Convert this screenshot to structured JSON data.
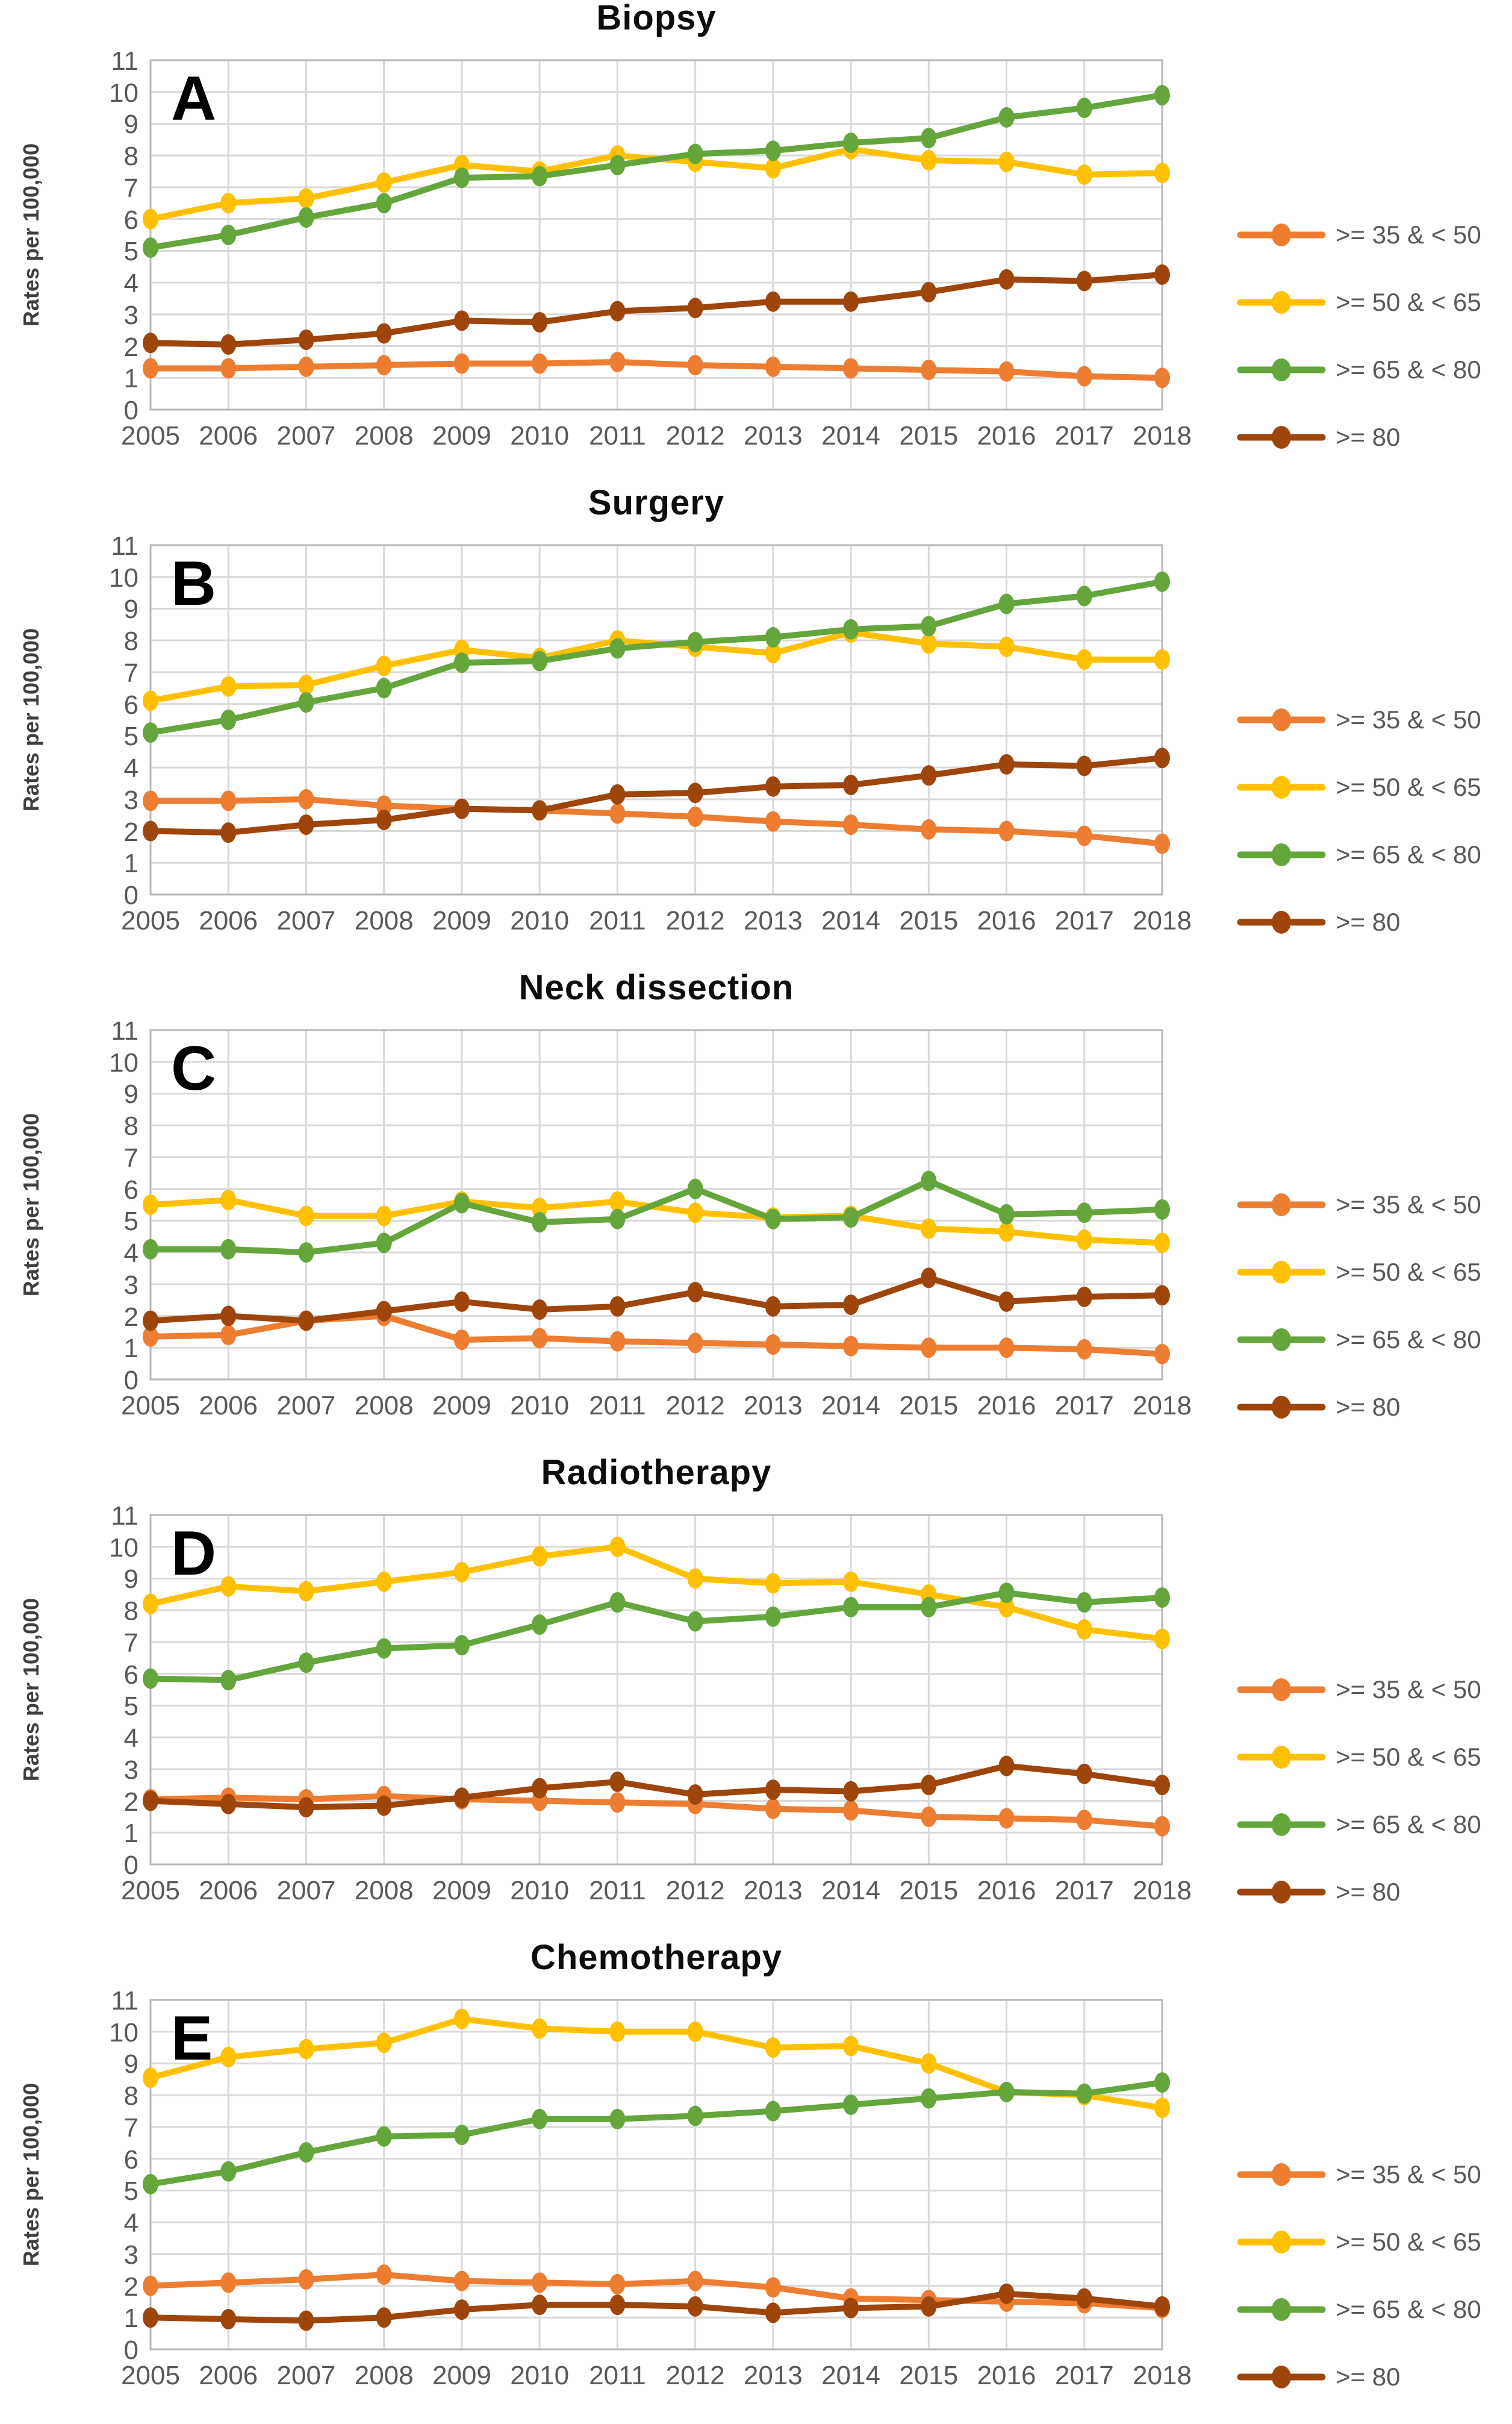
{
  "figure": {
    "y_axis_label": "Rates per 100,000",
    "years": [
      "2005",
      "2006",
      "2007",
      "2008",
      "2009",
      "2010",
      "2011",
      "2012",
      "2013",
      "2014",
      "2015",
      "2016",
      "2017",
      "2018"
    ],
    "colors": {
      "age_35_50": "#ED7D31",
      "age_50_65": "#FFC000",
      "age_65_80": "#64A63C",
      "age_80_plus": "#9E450C",
      "gridline": "#d9d9d9",
      "plot_border": "#b7b7b7",
      "tick_text": "#595959",
      "title_text": "#0d0d0d"
    }
  },
  "chart_data": [
    {
      "type": "line",
      "panel_letter": "A",
      "title": "Biopsy",
      "xlabel": "",
      "ylabel": "Rates per 100,000",
      "ylim": [
        0,
        11
      ],
      "grid": true,
      "legend_position": "right",
      "x": [
        "2005",
        "2006",
        "2007",
        "2008",
        "2009",
        "2010",
        "2011",
        "2012",
        "2013",
        "2014",
        "2015",
        "2016",
        "2017",
        "2018"
      ],
      "series": [
        {
          "name": ">= 35 & < 50",
          "color": "#ED7D31",
          "values": [
            1.3,
            1.3,
            1.35,
            1.4,
            1.45,
            1.45,
            1.5,
            1.4,
            1.35,
            1.3,
            1.25,
            1.2,
            1.05,
            1.0
          ]
        },
        {
          "name": ">= 50 & < 65",
          "color": "#FFC000",
          "values": [
            6.0,
            6.5,
            6.65,
            7.15,
            7.7,
            7.5,
            8.0,
            7.8,
            7.6,
            8.2,
            7.85,
            7.8,
            7.4,
            7.45
          ]
        },
        {
          "name": ">= 65 & < 80",
          "color": "#64A63C",
          "values": [
            5.1,
            5.5,
            6.05,
            6.5,
            7.3,
            7.35,
            7.7,
            8.05,
            8.15,
            8.4,
            8.55,
            9.2,
            9.5,
            9.9
          ]
        },
        {
          "name": ">= 80",
          "color": "#9E450C",
          "values": [
            2.1,
            2.05,
            2.2,
            2.4,
            2.8,
            2.75,
            3.1,
            3.2,
            3.4,
            3.4,
            3.7,
            4.1,
            4.05,
            4.25
          ]
        }
      ]
    },
    {
      "type": "line",
      "panel_letter": "B",
      "title": "Surgery",
      "xlabel": "",
      "ylabel": "Rates per 100,000",
      "ylim": [
        0,
        11
      ],
      "grid": true,
      "legend_position": "right",
      "x": [
        "2005",
        "2006",
        "2007",
        "2008",
        "2009",
        "2010",
        "2011",
        "2012",
        "2013",
        "2014",
        "2015",
        "2016",
        "2017",
        "2018"
      ],
      "series": [
        {
          "name": ">= 35 & < 50",
          "color": "#ED7D31",
          "values": [
            2.95,
            2.95,
            3.0,
            2.8,
            2.7,
            2.65,
            2.55,
            2.45,
            2.3,
            2.2,
            2.05,
            2.0,
            1.85,
            1.6
          ]
        },
        {
          "name": ">= 50 & < 65",
          "color": "#FFC000",
          "values": [
            6.1,
            6.55,
            6.6,
            7.2,
            7.7,
            7.45,
            8.0,
            7.8,
            7.6,
            8.25,
            7.9,
            7.8,
            7.4,
            7.4
          ]
        },
        {
          "name": ">= 65 & < 80",
          "color": "#64A63C",
          "values": [
            5.1,
            5.5,
            6.05,
            6.5,
            7.3,
            7.35,
            7.75,
            7.95,
            8.1,
            8.35,
            8.45,
            9.15,
            9.4,
            9.85
          ]
        },
        {
          "name": ">= 80",
          "color": "#9E450C",
          "values": [
            2.0,
            1.95,
            2.2,
            2.35,
            2.7,
            2.65,
            3.15,
            3.2,
            3.4,
            3.45,
            3.75,
            4.1,
            4.05,
            4.3
          ]
        }
      ]
    },
    {
      "type": "line",
      "panel_letter": "C",
      "title": "Neck dissection",
      "xlabel": "",
      "ylabel": "Rates per 100,000",
      "ylim": [
        0,
        11
      ],
      "grid": true,
      "legend_position": "right",
      "x": [
        "2005",
        "2006",
        "2007",
        "2008",
        "2009",
        "2010",
        "2011",
        "2012",
        "2013",
        "2014",
        "2015",
        "2016",
        "2017",
        "2018"
      ],
      "series": [
        {
          "name": ">= 35 & < 50",
          "color": "#ED7D31",
          "values": [
            1.35,
            1.4,
            1.85,
            2.0,
            1.25,
            1.3,
            1.2,
            1.15,
            1.1,
            1.05,
            1.0,
            1.0,
            0.95,
            0.8
          ]
        },
        {
          "name": ">= 50 & < 65",
          "color": "#FFC000",
          "values": [
            5.5,
            5.65,
            5.15,
            5.15,
            5.6,
            5.4,
            5.6,
            5.25,
            5.1,
            5.15,
            4.75,
            4.65,
            4.4,
            4.3
          ]
        },
        {
          "name": ">= 65 & < 80",
          "color": "#64A63C",
          "values": [
            4.1,
            4.1,
            4.0,
            4.3,
            5.55,
            4.95,
            5.05,
            6.0,
            5.05,
            5.1,
            6.25,
            5.2,
            5.25,
            5.35
          ]
        },
        {
          "name": ">= 80",
          "color": "#9E450C",
          "values": [
            1.85,
            2.0,
            1.85,
            2.15,
            2.45,
            2.2,
            2.3,
            2.75,
            2.3,
            2.35,
            3.2,
            2.45,
            2.6,
            2.65
          ]
        }
      ]
    },
    {
      "type": "line",
      "panel_letter": "D",
      "title": "Radiotherapy",
      "xlabel": "",
      "ylabel": "Rates per 100,000",
      "ylim": [
        0,
        11
      ],
      "grid": true,
      "legend_position": "right",
      "x": [
        "2005",
        "2006",
        "2007",
        "2008",
        "2009",
        "2010",
        "2011",
        "2012",
        "2013",
        "2014",
        "2015",
        "2016",
        "2017",
        "2018"
      ],
      "series": [
        {
          "name": ">= 35 & < 50",
          "color": "#ED7D31",
          "values": [
            2.05,
            2.1,
            2.05,
            2.15,
            2.05,
            2.0,
            1.95,
            1.9,
            1.75,
            1.7,
            1.5,
            1.45,
            1.4,
            1.2
          ]
        },
        {
          "name": ">= 50 & < 65",
          "color": "#FFC000",
          "values": [
            8.2,
            8.75,
            8.6,
            8.9,
            9.2,
            9.7,
            10.0,
            9.0,
            8.85,
            8.9,
            8.5,
            8.1,
            7.4,
            7.1
          ]
        },
        {
          "name": ">= 65 & < 80",
          "color": "#64A63C",
          "values": [
            5.85,
            5.8,
            6.35,
            6.8,
            6.9,
            7.55,
            8.25,
            7.65,
            7.8,
            8.1,
            8.1,
            8.55,
            8.25,
            8.4
          ]
        },
        {
          "name": ">= 80",
          "color": "#9E450C",
          "values": [
            2.0,
            1.9,
            1.8,
            1.85,
            2.1,
            2.4,
            2.6,
            2.2,
            2.35,
            2.3,
            2.5,
            3.1,
            2.85,
            2.5
          ]
        }
      ]
    },
    {
      "type": "line",
      "panel_letter": "E",
      "title": "Chemotherapy",
      "xlabel": "",
      "ylabel": "Rates per 100,000",
      "ylim": [
        0,
        11
      ],
      "grid": true,
      "legend_position": "right",
      "x": [
        "2005",
        "2006",
        "2007",
        "2008",
        "2009",
        "2010",
        "2011",
        "2012",
        "2013",
        "2014",
        "2015",
        "2016",
        "2017",
        "2018"
      ],
      "series": [
        {
          "name": ">= 35 & < 50",
          "color": "#ED7D31",
          "values": [
            2.0,
            2.1,
            2.2,
            2.35,
            2.15,
            2.1,
            2.05,
            2.15,
            1.95,
            1.6,
            1.55,
            1.5,
            1.45,
            1.3
          ]
        },
        {
          "name": ">= 50 & < 65",
          "color": "#FFC000",
          "values": [
            8.55,
            9.2,
            9.45,
            9.65,
            10.4,
            10.1,
            10.0,
            10.0,
            9.5,
            9.55,
            9.0,
            8.1,
            8.0,
            7.6
          ]
        },
        {
          "name": ">= 65 & < 80",
          "color": "#64A63C",
          "values": [
            5.2,
            5.6,
            6.2,
            6.7,
            6.75,
            7.25,
            7.25,
            7.35,
            7.5,
            7.7,
            7.9,
            8.1,
            8.05,
            8.4
          ]
        },
        {
          "name": ">= 80",
          "color": "#9E450C",
          "values": [
            1.0,
            0.95,
            0.9,
            1.0,
            1.25,
            1.4,
            1.4,
            1.35,
            1.15,
            1.3,
            1.35,
            1.75,
            1.6,
            1.35
          ]
        }
      ]
    }
  ]
}
